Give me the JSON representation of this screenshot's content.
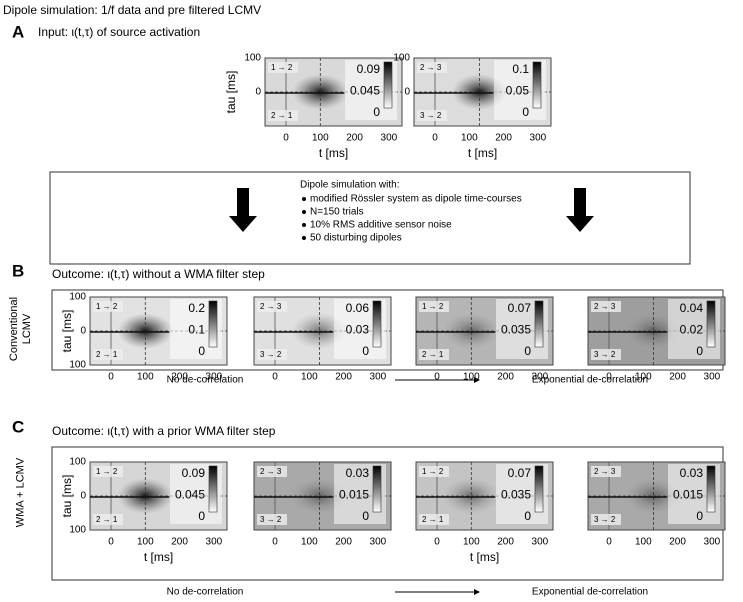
{
  "title": "Dipole simulation: 1/f data and pre filtered LCMV",
  "axes": {
    "x_label": "t [ms]",
    "y_label": "tau [ms]",
    "x_ticks": [
      "0",
      "100",
      "200",
      "300"
    ]
  },
  "simulation_box": {
    "heading": "Dipole simulation with:",
    "items": [
      "modified Rössler system as dipole time-courses",
      "N=150 trials",
      "10% RMS additive sensor noise",
      "50 disturbing dipoles"
    ]
  },
  "sections": [
    {
      "letter": "A",
      "heading": "Input: ι(t,τ) of source activation",
      "y_ticks": [
        "100",
        "0"
      ],
      "panels": [
        {
          "top_label": "1 → 2",
          "bottom_label": "2 → 1",
          "colorbar": [
            "0.09",
            "0.045",
            "0"
          ]
        },
        {
          "top_label": "2 → 3",
          "bottom_label": "3 → 2",
          "colorbar": [
            "0.1",
            "0.05",
            "0"
          ]
        }
      ]
    },
    {
      "letter": "B",
      "heading": "Outcome: ι(t,τ) without a WMA filter step",
      "side_label": "Conventional LCMV",
      "y_ticks": [
        "100",
        "0",
        "100"
      ],
      "left_note": "No de-correlation",
      "right_note": "Exponential de-correlation",
      "panels": [
        {
          "top_label": "1 → 2",
          "bottom_label": "2 → 1",
          "colorbar": [
            "0.2",
            "0.1",
            "0"
          ]
        },
        {
          "top_label": "2 → 3",
          "bottom_label": "3 → 2",
          "colorbar": [
            "0.06",
            "0.03",
            "0"
          ]
        },
        {
          "top_label": "1 → 2",
          "bottom_label": "2 → 1",
          "colorbar": [
            "0.07",
            "0.035",
            "0"
          ]
        },
        {
          "top_label": "2 → 3",
          "bottom_label": "3 → 2",
          "colorbar": [
            "0.04",
            "0.02",
            "0"
          ]
        }
      ]
    },
    {
      "letter": "C",
      "heading": "Outcome: ι(t,τ) with a prior WMA filter step",
      "side_label": "WMA + LCMV",
      "y_ticks": [
        "100",
        "0",
        "100"
      ],
      "left_note": "No de-correlation",
      "right_note": "Exponential de-correlation",
      "panels": [
        {
          "top_label": "1 → 2",
          "bottom_label": "2 → 1",
          "colorbar": [
            "0.09",
            "0.045",
            "0"
          ]
        },
        {
          "top_label": "2 → 3",
          "bottom_label": "3 → 2",
          "colorbar": [
            "0.03",
            "0.015",
            "0"
          ]
        },
        {
          "top_label": "1 → 2",
          "bottom_label": "2 → 1",
          "colorbar": [
            "0.07",
            "0.035",
            "0"
          ]
        },
        {
          "top_label": "2 → 3",
          "bottom_label": "3 → 2",
          "colorbar": [
            "0.03",
            "0.015",
            "0"
          ]
        }
      ]
    }
  ]
}
